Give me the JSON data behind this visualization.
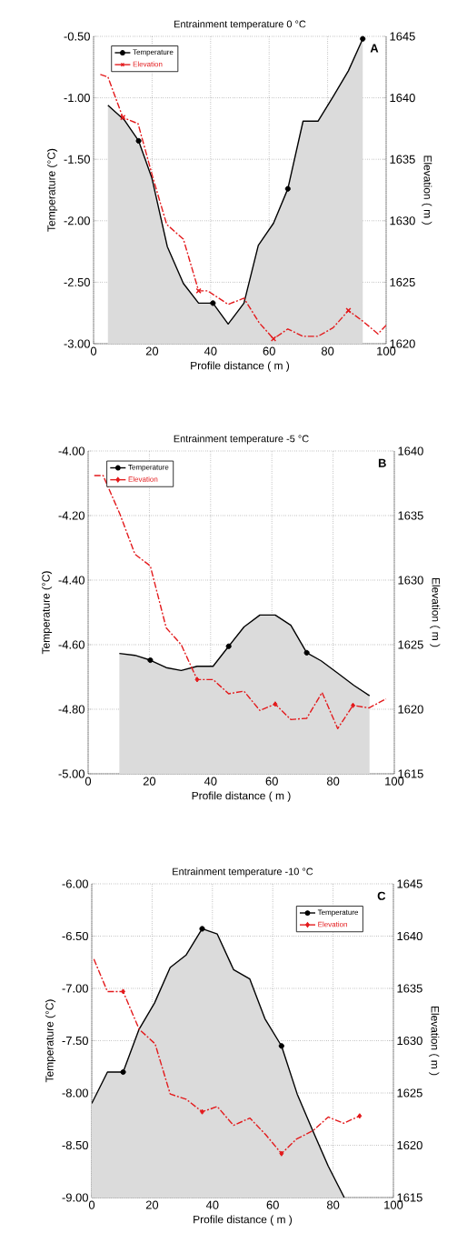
{
  "chart_data": [
    {
      "type": "line",
      "title": "Entrainment temperature 0 °C",
      "xlabel": "Profile distance ( m )",
      "ylabel": "Temperature (°C)",
      "y2label": "Elevation ( m )",
      "annotations": [
        "A"
      ],
      "grid": true,
      "legend": "top left",
      "xlim": [
        0,
        100
      ],
      "xticks": [
        0,
        20,
        40,
        60,
        80,
        100
      ],
      "ylim": [
        -3,
        -0.5
      ],
      "yticks": [
        {
          "value": -3,
          "label": "-3.00"
        },
        {
          "value": -2.5,
          "label": "-2.50"
        },
        {
          "value": -2,
          "label": "-2.00"
        },
        {
          "value": -1.5,
          "label": "-1.50"
        },
        {
          "value": -1,
          "label": "-1.00"
        },
        {
          "value": -0.5,
          "label": "-0.50"
        }
      ],
      "y2lim": [
        1620,
        1645
      ],
      "y2ticks": [
        1620,
        1625,
        1630,
        1635,
        1640,
        1645
      ],
      "series": [
        {
          "name": "Temperature",
          "type": "area",
          "color": "#000000",
          "line_style": "solid",
          "x": [
            4.9,
            10.5,
            15.4,
            19.9,
            25.2,
            30.7,
            35.9,
            40.8,
            46.0,
            51.4,
            56.3,
            61.5,
            66.4,
            71.6,
            76.7,
            81.9,
            87.1,
            92.0
          ],
          "values": [
            -1.06,
            -1.18,
            -1.35,
            -1.65,
            -2.21,
            -2.51,
            -2.67,
            -2.67,
            -2.84,
            -2.67,
            -2.2,
            -2.02,
            -1.74,
            -1.19,
            -1.19,
            -0.99,
            -0.78,
            -0.52
          ]
        },
        {
          "type": "scatter",
          "color": "#000000",
          "marker": "circle",
          "x": [
            15.4,
            40.8,
            66.4,
            92.0
          ],
          "values": [
            -1.35,
            -2.67,
            -1.74,
            -0.52
          ]
        },
        {
          "name": "Elevation",
          "color": "#e31a1c",
          "line_style": "dashed",
          "axis": "y2",
          "x": [
            2.3,
            4.9,
            10.0,
            15.2,
            20.4,
            25.0,
            30.7,
            35.9,
            39.0,
            46.0,
            51.4,
            56.6,
            61.5,
            66.4,
            71.6,
            76.7,
            81.9,
            87.1,
            92.2,
            97.2,
            100
          ],
          "values": [
            1641.9,
            1641.7,
            1638.4,
            1637.9,
            1633.4,
            1629.7,
            1628.5,
            1624.3,
            1624.3,
            1623.2,
            1623.7,
            1621.7,
            1620.4,
            1621.2,
            1620.6,
            1620.6,
            1621.3,
            1622.7,
            1621.8,
            1620.8,
            1621.5
          ]
        },
        {
          "type": "scatter",
          "color": "#e31a1c",
          "marker": "cross",
          "axis": "y2",
          "x": [
            10.0,
            35.9,
            61.5,
            87.1
          ],
          "values": [
            1638.4,
            1624.3,
            1620.4,
            1622.7
          ]
        }
      ]
    },
    {
      "type": "line",
      "title": "Entrainment temperature -5 °C",
      "xlabel": "Profile distance ( m )",
      "ylabel": "Temperature (°C)",
      "y2label": "Elevation ( m )",
      "annotations": [
        "B"
      ],
      "grid": true,
      "legend": "top left",
      "xlim": [
        0,
        100
      ],
      "xticks": [
        0,
        20,
        40,
        60,
        80,
        100
      ],
      "ylim": [
        -5,
        -4
      ],
      "yticks": [
        {
          "value": -5,
          "label": "-5.00"
        },
        {
          "value": -4.8,
          "label": "-4.80"
        },
        {
          "value": -4.6,
          "label": "-4.60"
        },
        {
          "value": -4.4,
          "label": "-4.40"
        },
        {
          "value": -4.2,
          "label": "-4.20"
        },
        {
          "value": -4,
          "label": "-4.00"
        }
      ],
      "y2lim": [
        1615,
        1640
      ],
      "y2ticks": [
        1615,
        1620,
        1625,
        1630,
        1635,
        1640
      ],
      "series": [
        {
          "name": "Temperature",
          "type": "area",
          "color": "#000000",
          "line_style": "solid",
          "x": [
            10.2,
            15.3,
            20.3,
            25.5,
            30.4,
            35.6,
            40.8,
            45.9,
            50.9,
            56.1,
            61.1,
            66.2,
            71.4,
            76.1,
            81.5,
            86.8,
            91.9
          ],
          "values": [
            -4.627,
            -4.633,
            -4.648,
            -4.671,
            -4.68,
            -4.667,
            -4.667,
            -4.605,
            -4.545,
            -4.508,
            -4.508,
            -4.54,
            -4.625,
            -4.65,
            -4.688,
            -4.726,
            -4.758
          ]
        },
        {
          "type": "scatter",
          "color": "#000000",
          "marker": "circle",
          "x": [
            20.3,
            45.9,
            71.4
          ],
          "values": [
            -4.648,
            -4.605,
            -4.625
          ]
        },
        {
          "name": "Elevation",
          "color": "#e31a1c",
          "line_style": "dashed",
          "axis": "y2",
          "x": [
            2.0,
            4.9,
            10.4,
            15.3,
            20.3,
            25.5,
            30.4,
            35.6,
            40.8,
            45.9,
            50.9,
            56.1,
            61.1,
            66.2,
            71.4,
            76.4,
            81.5,
            86.5,
            91.7,
            97.3
          ],
          "values": [
            1638.1,
            1638.1,
            1635.1,
            1632.0,
            1631.1,
            1626.3,
            1625.0,
            1622.3,
            1622.3,
            1621.2,
            1621.4,
            1619.9,
            1620.4,
            1619.2,
            1619.3,
            1621.3,
            1618.5,
            1620.3,
            1620.1,
            1620.8
          ]
        },
        {
          "type": "scatter",
          "color": "#e31a1c",
          "marker": "diamond",
          "axis": "y2",
          "x": [
            35.6,
            61.1,
            86.5
          ],
          "values": [
            1622.3,
            1620.4,
            1620.3
          ]
        }
      ]
    },
    {
      "type": "line",
      "title": "Entrainment temperature -10 °C",
      "xlabel": "Profile distance ( m )",
      "ylabel": "Temperature (°C)",
      "y2label": "Elevation ( m )",
      "annotations": [
        "C"
      ],
      "grid": true,
      "legend": "top right",
      "xlim": [
        0,
        100
      ],
      "xticks": [
        0,
        20,
        40,
        60,
        80,
        100
      ],
      "ylim": [
        -9,
        -6
      ],
      "yticks": [
        {
          "value": -9,
          "label": "-9.00"
        },
        {
          "value": -8.5,
          "label": "-8.50"
        },
        {
          "value": -8,
          "label": "-8.00"
        },
        {
          "value": -7.5,
          "label": "-7.50"
        },
        {
          "value": -7,
          "label": "-7.00"
        },
        {
          "value": -6.5,
          "label": "-6.50"
        },
        {
          "value": -6,
          "label": "-6.00"
        }
      ],
      "y2lim": [
        1615,
        1645
      ],
      "y2ticks": [
        1615,
        1620,
        1625,
        1630,
        1635,
        1640,
        1645
      ],
      "series": [
        {
          "name": "Temperature",
          "type": "area",
          "color": "#000000",
          "line_style": "solid",
          "x": [
            0,
            5.2,
            10.4,
            15.7,
            20.8,
            26.0,
            31.3,
            36.6,
            41.6,
            47.0,
            52.4,
            57.4,
            62.9,
            68.1,
            73.4,
            78.4,
            83.7
          ],
          "values": [
            -8.1,
            -7.8,
            -7.8,
            -7.39,
            -7.14,
            -6.8,
            -6.68,
            -6.43,
            -6.48,
            -6.82,
            -6.91,
            -7.29,
            -7.55,
            -8.01,
            -8.37,
            -8.7,
            -9.0
          ]
        },
        {
          "type": "scatter",
          "color": "#000000",
          "marker": "circle",
          "x": [
            10.4,
            36.6,
            62.9
          ],
          "values": [
            -7.8,
            -6.43,
            -7.55
          ]
        },
        {
          "name": "Elevation",
          "color": "#e31a1c",
          "line_style": "dashed",
          "axis": "y2",
          "x": [
            0.7,
            5.2,
            10.4,
            15.7,
            21.0,
            26.0,
            31.3,
            36.6,
            41.6,
            47.0,
            52.4,
            57.7,
            62.9,
            67.9,
            73.4,
            78.4,
            83.5,
            88.8
          ],
          "values": [
            1637.8,
            1634.7,
            1634.7,
            1631.1,
            1629.7,
            1624.9,
            1624.4,
            1623.2,
            1623.7,
            1621.9,
            1622.6,
            1621.0,
            1619.2,
            1620.6,
            1621.4,
            1622.7,
            1622.1,
            1622.8
          ]
        },
        {
          "type": "scatter",
          "color": "#e31a1c",
          "marker": "diamond",
          "axis": "y2",
          "x": [
            10.4,
            36.6,
            62.9,
            88.8
          ],
          "values": [
            1634.7,
            1623.2,
            1619.2,
            1622.8
          ]
        }
      ]
    }
  ]
}
